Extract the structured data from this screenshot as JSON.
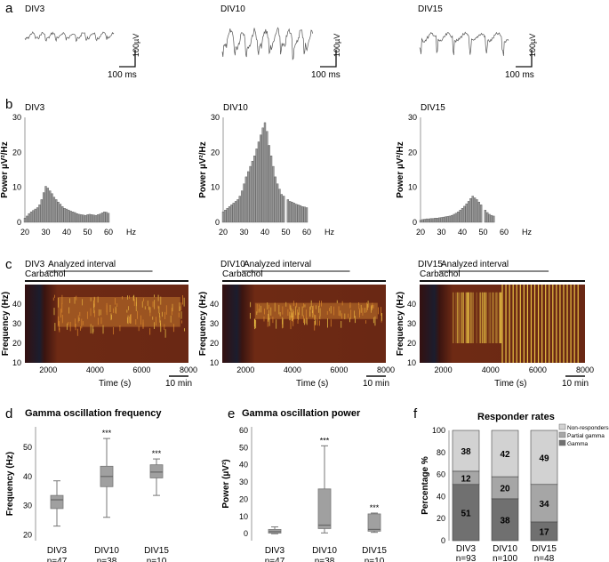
{
  "figure": {
    "panel_a": {
      "letter": "a",
      "traces": [
        {
          "label": "DIV3",
          "time_scale": "100 ms",
          "amp_scale": "100µV"
        },
        {
          "label": "DIV10",
          "time_scale": "100 ms",
          "amp_scale": "100µV"
        },
        {
          "label": "DIV15",
          "time_scale": "100 ms",
          "amp_scale": "100µV"
        }
      ]
    },
    "panel_b": {
      "letter": "b"
    },
    "panel_c": {
      "letter": "c"
    },
    "panel_d": {
      "letter": "d"
    },
    "panel_e": {
      "letter": "e"
    },
    "panel_f": {
      "letter": "f"
    }
  },
  "colors": {
    "bar": "#9a9a9a",
    "box": "#a0a0a0",
    "gamma": "#707070",
    "partial": "#a6a6a6",
    "nonresp": "#d2d2d2",
    "spec_dark": "#2a0808",
    "spec_hot": "#f6d24a"
  },
  "chart_data": [
    {
      "id": "b-DIV3",
      "type": "bar",
      "title": "DIV3",
      "xlabel": "Hz",
      "ylabel": "Power µV²/Hz",
      "xlim": [
        20,
        60
      ],
      "ylim": [
        0,
        30
      ],
      "xticks": [
        20,
        30,
        40,
        50,
        60
      ],
      "yticks": [
        0,
        10,
        20,
        30
      ],
      "x": [
        20,
        21,
        22,
        23,
        24,
        25,
        26,
        27,
        28,
        29,
        30,
        31,
        32,
        33,
        34,
        35,
        36,
        37,
        38,
        39,
        40,
        41,
        42,
        43,
        44,
        45,
        46,
        47,
        48,
        49,
        50,
        51,
        52,
        53,
        54,
        55,
        56,
        57,
        58,
        59,
        60
      ],
      "values": [
        1.2,
        1.8,
        2.5,
        3,
        3.4,
        3.8,
        4.2,
        5,
        6.5,
        8.5,
        10.3,
        9.8,
        9,
        8.2,
        7.2,
        6.5,
        5.8,
        5.2,
        4.5,
        4,
        3.8,
        3.5,
        3.2,
        3,
        2.8,
        2.5,
        2.3,
        2.2,
        2.1,
        2,
        2.2,
        2.3,
        2.2,
        2.1,
        2,
        2.2,
        2.4,
        2.7,
        3,
        2.9,
        2.6
      ]
    },
    {
      "id": "b-DIV10",
      "type": "bar",
      "title": "DIV10",
      "xlabel": "Hz",
      "ylabel": "Power µV²/Hz",
      "xlim": [
        20,
        60
      ],
      "ylim": [
        0,
        30
      ],
      "xticks": [
        20,
        30,
        40,
        50,
        60
      ],
      "yticks": [
        0,
        10,
        20,
        30
      ],
      "x": [
        20,
        21,
        22,
        23,
        24,
        25,
        26,
        27,
        28,
        29,
        30,
        31,
        32,
        33,
        34,
        35,
        36,
        37,
        38,
        39,
        40,
        41,
        42,
        43,
        44,
        45,
        46,
        47,
        48,
        49,
        50,
        51,
        52,
        53,
        54,
        55,
        56,
        57,
        58,
        59,
        60
      ],
      "values": [
        3,
        3.5,
        4,
        4.5,
        5,
        5.5,
        6,
        6.5,
        7.5,
        9,
        11,
        13,
        14.5,
        16,
        17.5,
        19,
        21,
        23,
        25,
        27,
        28.5,
        26,
        22,
        19,
        16,
        13,
        11,
        9.5,
        8,
        7.5,
        0,
        6.5,
        6,
        5.8,
        5.5,
        5.2,
        5,
        4.8,
        4.5,
        4.4,
        4.2
      ]
    },
    {
      "id": "b-DIV15",
      "type": "bar",
      "title": "DIV15",
      "xlabel": "Hz",
      "ylabel": "Power µV²/Hz",
      "xlim": [
        20,
        60
      ],
      "ylim": [
        0,
        30
      ],
      "xticks": [
        20,
        30,
        40,
        50,
        60
      ],
      "yticks": [
        0,
        10,
        20,
        30
      ],
      "x": [
        20,
        21,
        22,
        23,
        24,
        25,
        26,
        27,
        28,
        29,
        30,
        31,
        32,
        33,
        34,
        35,
        36,
        37,
        38,
        39,
        40,
        41,
        42,
        43,
        44,
        45,
        46,
        47,
        48,
        49,
        50,
        51,
        52,
        53,
        54,
        55,
        56,
        57,
        58,
        59,
        60
      ],
      "values": [
        0.6,
        0.8,
        0.9,
        1,
        1,
        1.1,
        1.1,
        1.2,
        1.2,
        1.3,
        1.4,
        1.5,
        1.6,
        1.7,
        1.8,
        2,
        2.3,
        2.6,
        3,
        3.5,
        4,
        4.6,
        5.3,
        6,
        6.8,
        7.5,
        7,
        6.5,
        5.8,
        5,
        0,
        3.5,
        2.8,
        2.3,
        2,
        1.8,
        0,
        0,
        0,
        0,
        0
      ]
    },
    {
      "id": "c-DIV3",
      "type": "heatmap",
      "title": "DIV3",
      "xlabel": "Time (s)",
      "ylabel": "Frequency (Hz)",
      "xlim": [
        1000,
        8000
      ],
      "ylim": [
        10,
        50
      ],
      "xticks": [
        2000,
        4000,
        6000,
        8000
      ],
      "yticks": [
        10,
        20,
        30,
        40
      ],
      "interval_label": "Analyzed interval",
      "drug_label": "Carbachol",
      "scalebar": "10 min",
      "band": "wide"
    },
    {
      "id": "c-DIV10",
      "type": "heatmap",
      "title": "DIV10",
      "xlabel": "Time (s)",
      "ylabel": "Frequency (Hz)",
      "xlim": [
        1000,
        8000
      ],
      "ylim": [
        10,
        50
      ],
      "xticks": [
        2000,
        4000,
        6000,
        8000
      ],
      "yticks": [
        10,
        20,
        30,
        40
      ],
      "interval_label": "Analyzed interval",
      "drug_label": "Carbachol",
      "scalebar": "10 min",
      "band": "narrow"
    },
    {
      "id": "c-DIV15",
      "type": "heatmap",
      "title": "DIV15",
      "xlabel": "Time (s)",
      "ylabel": "Frequency (Hz)",
      "xlim": [
        1000,
        8000
      ],
      "ylim": [
        10,
        50
      ],
      "xticks": [
        2000,
        4000,
        6000,
        8000
      ],
      "yticks": [
        10,
        20,
        30,
        40
      ],
      "interval_label": "Analyzed interval",
      "drug_label": "Carbachol",
      "scalebar": "10 min",
      "band": "stripes"
    },
    {
      "id": "d",
      "type": "box",
      "title": "Gamma oscillation frequency",
      "ylabel": "Frequency (Hz)",
      "ylim": [
        18,
        57
      ],
      "yticks": [
        20,
        30,
        40,
        50
      ],
      "categories": [
        "DIV3",
        "DIV10",
        "DIV15"
      ],
      "n_labels": [
        "n=47",
        "n=38",
        "n=10"
      ],
      "significance": [
        "",
        "***",
        "***"
      ],
      "boxes": [
        {
          "min": 23,
          "q1": 29,
          "median": 32,
          "q3": 33.5,
          "max": 38.5
        },
        {
          "min": 26,
          "q1": 36.5,
          "median": 40,
          "q3": 43.5,
          "max": 53
        },
        {
          "min": 33.5,
          "q1": 39.5,
          "median": 41.5,
          "q3": 44,
          "max": 46
        }
      ]
    },
    {
      "id": "e",
      "type": "box",
      "title": "Gamma oscillation power",
      "ylabel": "Power (µV²)",
      "ylim": [
        -4,
        62
      ],
      "yticks": [
        0,
        10,
        20,
        30,
        40,
        50,
        60
      ],
      "categories": [
        "DIV3",
        "DIV10",
        "DIV15"
      ],
      "n_labels": [
        "n=47",
        "n=38",
        "n=10"
      ],
      "significance": [
        "",
        "***",
        "***"
      ],
      "boxes": [
        {
          "min": 0,
          "q1": 0.4,
          "median": 1.2,
          "q3": 2.5,
          "max": 4
        },
        {
          "min": 0.5,
          "q1": 3,
          "median": 5,
          "q3": 26,
          "max": 51
        },
        {
          "min": 0.8,
          "q1": 1.5,
          "median": 2.5,
          "q3": 11.5,
          "max": 12
        }
      ]
    },
    {
      "id": "f",
      "type": "stacked-bar",
      "title": "Responder rates",
      "ylabel": "Percentage %",
      "ylim": [
        0,
        100
      ],
      "yticks": [
        0,
        20,
        40,
        60,
        80,
        100
      ],
      "categories": [
        "DIV3",
        "DIV10",
        "DIV15"
      ],
      "n_labels": [
        "n=93",
        "n=100",
        "n=48"
      ],
      "series": [
        {
          "name": "Gamma",
          "values": [
            51,
            38,
            17
          ]
        },
        {
          "name": "Partial gamma",
          "values": [
            12,
            20,
            34
          ]
        },
        {
          "name": "Non-responders",
          "values": [
            38,
            42,
            49
          ]
        }
      ],
      "legend": [
        "Non-responders",
        "Partial gamma",
        "Gamma"
      ]
    }
  ]
}
